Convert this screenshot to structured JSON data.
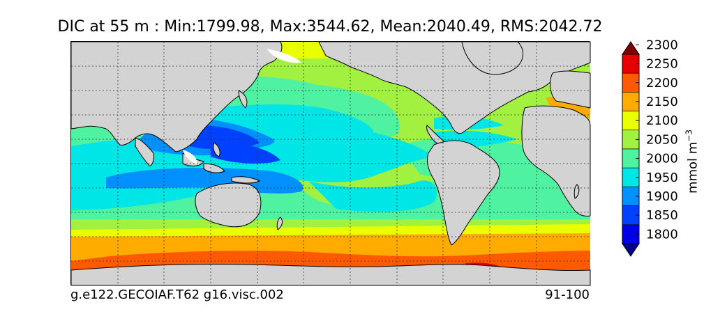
{
  "title": "DIC at 55 m : Min:1799.98, Max:3544.62, Mean:2040.49, RMS:2042.72",
  "case_label": "g.e122.GECOIAF.T62 g16.visc.002",
  "years_label": "91-100",
  "colorbar": {
    "unit": "mmol m",
    "unit_exponent": "−3",
    "ticks": [
      "1800",
      "1850",
      "1900",
      "1950",
      "2000",
      "2050",
      "2100",
      "2150",
      "2200",
      "2250",
      "2300"
    ],
    "colors": [
      "#00008b",
      "#0000e6",
      "#0040ff",
      "#0090ff",
      "#00e5e5",
      "#4ff2a0",
      "#a2f040",
      "#eaff00",
      "#ffab00",
      "#ff5a00",
      "#e60000",
      "#800000"
    ],
    "extend": "both"
  },
  "map": {
    "land_color": "#d3d3d3",
    "missing_color": "#ffffff",
    "grid": "dotted",
    "contour_lines": "black"
  }
}
